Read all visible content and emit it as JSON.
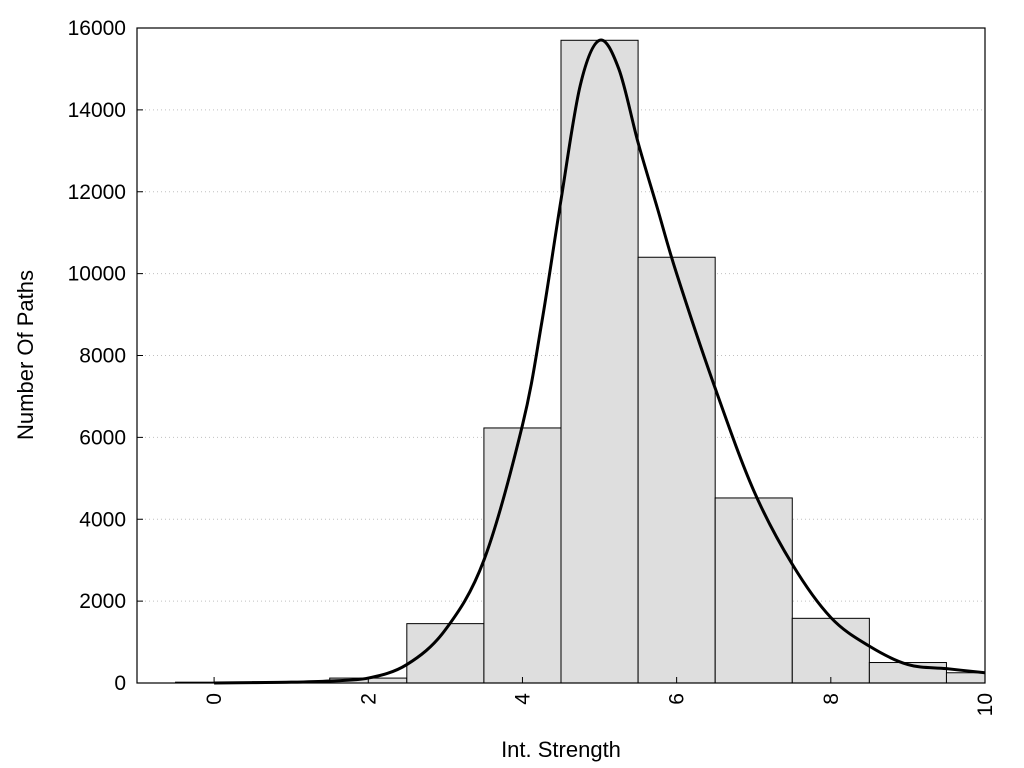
{
  "chart_data": {
    "type": "bar",
    "xlabel": "Int. Strength",
    "ylabel": "Number Of Paths",
    "xlim": [
      -1,
      10
    ],
    "ylim": [
      0,
      16000
    ],
    "xticks": [
      0,
      2,
      4,
      6,
      8,
      10
    ],
    "yticks": [
      0,
      2000,
      4000,
      6000,
      8000,
      10000,
      12000,
      14000,
      16000
    ],
    "x_tick_labels": [
      "0",
      "2",
      "4",
      "6",
      "8",
      "10"
    ],
    "y_tick_labels": [
      "0",
      "2000",
      "4000",
      "6000",
      "8000",
      "10000",
      "12000",
      "14000",
      "16000"
    ],
    "grid": "horizontal dotted",
    "legend": "none",
    "bar_width": 1,
    "bars": [
      {
        "x": 0,
        "value": 20
      },
      {
        "x": 1,
        "value": 30
      },
      {
        "x": 2,
        "value": 120
      },
      {
        "x": 3,
        "value": 1450
      },
      {
        "x": 4,
        "value": 6230
      },
      {
        "x": 5,
        "value": 15700
      },
      {
        "x": 6,
        "value": 10400
      },
      {
        "x": 7,
        "value": 4520
      },
      {
        "x": 8,
        "value": 1580
      },
      {
        "x": 9,
        "value": 500
      },
      {
        "x": 10,
        "value": 250
      }
    ],
    "curve": {
      "x": [
        0,
        0.5,
        1,
        1.5,
        2,
        2.5,
        3,
        3.5,
        4,
        4.25,
        4.5,
        4.75,
        5,
        5.25,
        5.5,
        5.75,
        6,
        6.5,
        7,
        7.5,
        8,
        8.5,
        9,
        9.5,
        10
      ],
      "y": [
        0,
        10,
        20,
        50,
        120,
        450,
        1300,
        3000,
        6300,
        8800,
        11800,
        14600,
        15700,
        15000,
        13200,
        11600,
        10000,
        7200,
        4700,
        2900,
        1600,
        900,
        450,
        350,
        250
      ]
    },
    "colors": {
      "bar_fill": "#dedede",
      "bar_stroke": "#000000",
      "curve": "#000000",
      "grid": "#c0c0c0"
    }
  }
}
